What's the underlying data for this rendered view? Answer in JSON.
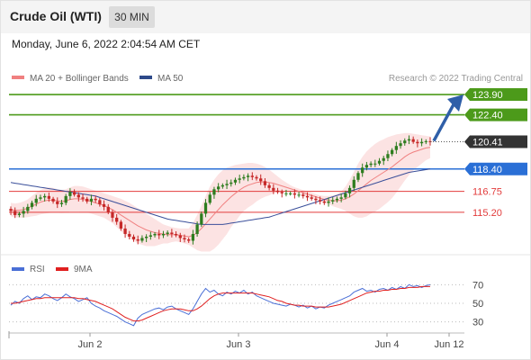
{
  "header": {
    "title": "Crude Oil (WTI)",
    "timeframe": "30 MIN",
    "timestamp": "Monday, June 6, 2022 2:04:54 AM CET"
  },
  "watermark": "Research © 2022 Trading Central",
  "chart_data": [
    {
      "type": "candlestick",
      "legend": [
        {
          "label": "MA 20 + Bollinger Bands",
          "color": "#f08080"
        },
        {
          "label": "MA 50",
          "color": "#2e4a8a"
        }
      ],
      "x_labels": [
        "Jun 2",
        "Jun 3",
        "Jun 4",
        "Jun 12"
      ],
      "ylim": [
        112.8,
        124.5
      ],
      "current_price": {
        "label": "120.41",
        "value": 120.41,
        "color": "#333333"
      },
      "levels": [
        {
          "label": "123.90",
          "value": 123.9,
          "kind": "resistance",
          "color": "#4c9a1a"
        },
        {
          "label": "122.40",
          "value": 122.4,
          "kind": "resistance",
          "color": "#4c9a1a"
        },
        {
          "label": "118.40",
          "value": 118.4,
          "kind": "pivot",
          "color": "#2a6fd6"
        },
        {
          "label": "116.75",
          "value": 116.75,
          "kind": "support",
          "color": "#e23b3b"
        },
        {
          "label": "115.20",
          "value": 115.2,
          "kind": "support",
          "color": "#e23b3b"
        }
      ],
      "close": [
        115.3,
        115.0,
        115.1,
        115.3,
        115.6,
        115.9,
        116.2,
        116.3,
        116.4,
        116.2,
        116.0,
        115.8,
        115.9,
        116.4,
        116.7,
        116.5,
        116.3,
        116.2,
        116.0,
        116.2,
        116.1,
        115.8,
        115.6,
        115.2,
        114.8,
        114.5,
        114.0,
        113.6,
        113.4,
        113.2,
        113.1,
        113.3,
        113.4,
        113.5,
        113.6,
        113.5,
        113.6,
        113.7,
        113.6,
        113.5,
        113.3,
        113.2,
        113.1,
        113.6,
        114.3,
        115.1,
        115.9,
        116.5,
        116.9,
        117.1,
        117.2,
        117.3,
        117.4,
        117.6,
        117.7,
        117.8,
        117.9,
        117.8,
        117.7,
        117.5,
        117.2,
        117.0,
        116.8,
        116.7,
        116.6,
        116.6,
        116.6,
        116.5,
        116.5,
        116.4,
        116.3,
        116.2,
        116.1,
        116.0,
        115.9,
        116.0,
        116.1,
        116.2,
        116.3,
        116.6,
        117.0,
        117.6,
        118.1,
        118.5,
        118.7,
        118.8,
        118.8,
        119.0,
        119.2,
        119.5,
        119.8,
        120.1,
        120.3,
        120.5,
        120.6,
        120.4,
        120.3,
        120.4,
        120.45,
        120.41
      ],
      "ma20": [
        115.4,
        115.35,
        115.35,
        115.4,
        115.5,
        115.65,
        115.8,
        115.95,
        116.05,
        116.1,
        116.1,
        116.05,
        116.0,
        116.05,
        116.15,
        116.2,
        116.2,
        116.15,
        116.1,
        116.0,
        115.9,
        115.8,
        115.7,
        115.55,
        115.4,
        115.2,
        115.0,
        114.8,
        114.6,
        114.4,
        114.2,
        114.05,
        113.9,
        113.8,
        113.7,
        113.65,
        113.6,
        113.55,
        113.55,
        113.55,
        113.5,
        113.45,
        113.4,
        113.5,
        113.7,
        114.0,
        114.35,
        114.7,
        115.05,
        115.4,
        115.75,
        116.05,
        116.35,
        116.6,
        116.85,
        117.05,
        117.2,
        117.3,
        117.4,
        117.45,
        117.45,
        117.4,
        117.35,
        117.25,
        117.15,
        117.05,
        116.95,
        116.85,
        116.75,
        116.65,
        116.55,
        116.45,
        116.35,
        116.25,
        116.15,
        116.1,
        116.05,
        116.05,
        116.1,
        116.2,
        116.35,
        116.55,
        116.8,
        117.05,
        117.3,
        117.55,
        117.75,
        117.95,
        118.15,
        118.35,
        118.55,
        118.8,
        119.05,
        119.3,
        119.5,
        119.65,
        119.75,
        119.85,
        119.95,
        120.0
      ],
      "bb_upper": [
        115.9,
        115.85,
        115.9,
        116.0,
        116.15,
        116.4,
        116.65,
        116.85,
        117.0,
        117.05,
        117.0,
        116.9,
        116.85,
        116.9,
        117.05,
        117.15,
        117.15,
        117.1,
        117.0,
        116.9,
        116.8,
        116.7,
        116.6,
        116.5,
        116.4,
        116.3,
        116.2,
        116.05,
        115.9,
        115.7,
        115.5,
        115.3,
        115.1,
        114.9,
        114.7,
        114.5,
        114.3,
        114.2,
        114.1,
        114.05,
        114.0,
        114.0,
        114.0,
        114.4,
        115.0,
        115.7,
        116.4,
        117.1,
        117.6,
        118.0,
        118.3,
        118.5,
        118.6,
        118.7,
        118.75,
        118.8,
        118.85,
        118.85,
        118.8,
        118.7,
        118.55,
        118.35,
        118.1,
        117.85,
        117.6,
        117.4,
        117.2,
        117.05,
        116.95,
        116.85,
        116.75,
        116.65,
        116.55,
        116.45,
        116.4,
        116.4,
        116.45,
        116.55,
        116.75,
        117.1,
        117.6,
        118.2,
        118.8,
        119.3,
        119.7,
        120.0,
        120.25,
        120.45,
        120.6,
        120.75,
        120.85,
        120.95,
        121.0,
        121.05,
        121.05,
        121.0,
        120.95,
        120.9,
        120.85,
        120.8
      ],
      "bb_lower": [
        114.9,
        114.85,
        114.8,
        114.8,
        114.85,
        114.9,
        114.95,
        115.05,
        115.1,
        115.15,
        115.2,
        115.2,
        115.15,
        115.2,
        115.25,
        115.25,
        115.25,
        115.2,
        115.2,
        115.1,
        115.0,
        114.9,
        114.8,
        114.6,
        114.4,
        114.1,
        113.8,
        113.55,
        113.3,
        113.1,
        112.9,
        112.8,
        112.7,
        112.7,
        112.7,
        112.8,
        112.9,
        112.9,
        113.0,
        113.05,
        113.0,
        112.9,
        112.8,
        112.6,
        112.4,
        112.3,
        112.3,
        112.3,
        112.5,
        112.8,
        113.2,
        113.6,
        114.1,
        114.5,
        114.95,
        115.3,
        115.55,
        115.75,
        116.0,
        116.2,
        116.35,
        116.45,
        116.6,
        116.65,
        116.7,
        116.7,
        116.7,
        116.65,
        116.55,
        116.45,
        116.35,
        116.25,
        116.15,
        116.05,
        115.9,
        115.8,
        115.65,
        115.55,
        115.45,
        115.3,
        115.1,
        114.9,
        114.8,
        114.8,
        114.9,
        115.1,
        115.25,
        115.45,
        115.7,
        115.95,
        116.25,
        116.65,
        117.1,
        117.55,
        117.95,
        118.3,
        118.55,
        118.8,
        119.05,
        119.2
      ],
      "ma50": [
        117.4,
        117.35,
        117.3,
        117.25,
        117.2,
        117.15,
        117.1,
        117.05,
        117.0,
        116.95,
        116.9,
        116.85,
        116.8,
        116.75,
        116.7,
        116.65,
        116.6,
        116.55,
        116.5,
        116.45,
        116.4,
        116.3,
        116.2,
        116.1,
        116.0,
        115.9,
        115.8,
        115.7,
        115.6,
        115.5,
        115.4,
        115.3,
        115.2,
        115.1,
        115.0,
        114.9,
        114.8,
        114.7,
        114.65,
        114.6,
        114.55,
        114.5,
        114.45,
        114.4,
        114.35,
        114.3,
        114.3,
        114.3,
        114.3,
        114.3,
        114.3,
        114.35,
        114.4,
        114.45,
        114.5,
        114.55,
        114.6,
        114.65,
        114.7,
        114.75,
        114.8,
        114.85,
        114.95,
        115.05,
        115.15,
        115.25,
        115.35,
        115.45,
        115.55,
        115.65,
        115.75,
        115.85,
        115.95,
        116.05,
        116.15,
        116.25,
        116.35,
        116.45,
        116.55,
        116.65,
        116.75,
        116.85,
        116.95,
        117.05,
        117.15,
        117.25,
        117.35,
        117.45,
        117.55,
        117.65,
        117.75,
        117.85,
        117.95,
        118.05,
        118.15,
        118.2,
        118.25,
        118.3,
        118.35,
        118.4
      ],
      "projection": {
        "from": 120.41,
        "to": 123.9
      }
    },
    {
      "type": "line",
      "legend": [
        {
          "label": "RSI",
          "color": "#4a6fd6"
        },
        {
          "label": "9MA",
          "color": "#e02020"
        }
      ],
      "ylim": [
        20,
        80
      ],
      "y_ticks": [
        70,
        50,
        30
      ],
      "rsi": [
        48,
        52,
        50,
        55,
        58,
        54,
        57,
        56,
        60,
        58,
        55,
        53,
        56,
        60,
        57,
        55,
        52,
        54,
        56,
        50,
        47,
        45,
        42,
        40,
        38,
        36,
        33,
        30,
        28,
        26,
        34,
        38,
        40,
        42,
        44,
        45,
        43,
        46,
        47,
        44,
        42,
        40,
        38,
        44,
        52,
        60,
        66,
        62,
        64,
        60,
        58,
        62,
        60,
        63,
        61,
        64,
        60,
        62,
        58,
        56,
        54,
        52,
        50,
        49,
        48,
        47,
        49,
        48,
        46,
        48,
        45,
        47,
        44,
        46,
        45,
        48,
        50,
        52,
        54,
        56,
        58,
        62,
        64,
        66,
        63,
        64,
        62,
        65,
        66,
        64,
        67,
        65,
        68,
        66,
        70,
        68,
        69,
        67,
        69,
        70
      ],
      "ma9": [
        50,
        50,
        51,
        52,
        53,
        54,
        55,
        55,
        56,
        56,
        56,
        56,
        56,
        56,
        56,
        56,
        55,
        55,
        54,
        53,
        52,
        50,
        48,
        46,
        44,
        41,
        38,
        35,
        33,
        31,
        31,
        32,
        34,
        36,
        38,
        40,
        42,
        43,
        44,
        44,
        44,
        43,
        42,
        42,
        44,
        47,
        51,
        55,
        58,
        60,
        61,
        61,
        61,
        61,
        61,
        61,
        61,
        61,
        60,
        59,
        58,
        57,
        55,
        53,
        52,
        50,
        49,
        48,
        48,
        47,
        47,
        47,
        46,
        46,
        46,
        46,
        47,
        48,
        49,
        51,
        53,
        55,
        57,
        59,
        61,
        62,
        63,
        63,
        64,
        64,
        65,
        65,
        66,
        66,
        67,
        67,
        67,
        68,
        68,
        68
      ]
    }
  ]
}
